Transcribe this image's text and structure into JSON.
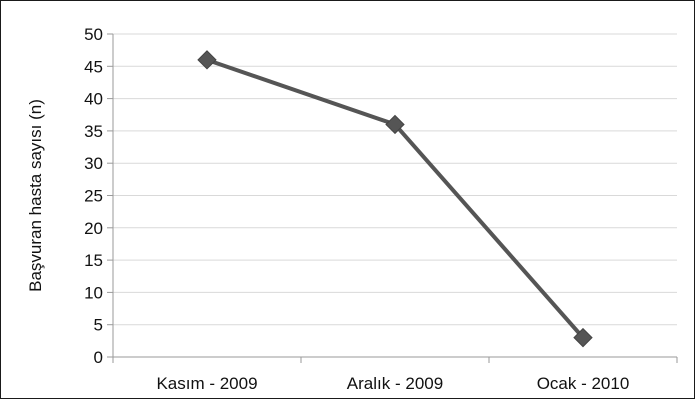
{
  "chart_data": {
    "type": "line",
    "title": "",
    "xlabel": "",
    "ylabel": "Başvuran hasta sayısı (n)",
    "categories": [
      "Kasım - 2009",
      "Aralık - 2009",
      "Ocak - 2010"
    ],
    "series": [
      {
        "values": [
          46,
          36,
          3
        ],
        "color": "#555555",
        "marker": "diamond"
      }
    ],
    "ylim": [
      0,
      50
    ],
    "yticks": [
      0,
      5,
      10,
      15,
      20,
      25,
      30,
      35,
      40,
      45,
      50
    ],
    "grid": {
      "horizontal": true,
      "color": "#d9d9d9"
    },
    "legend": "none"
  }
}
